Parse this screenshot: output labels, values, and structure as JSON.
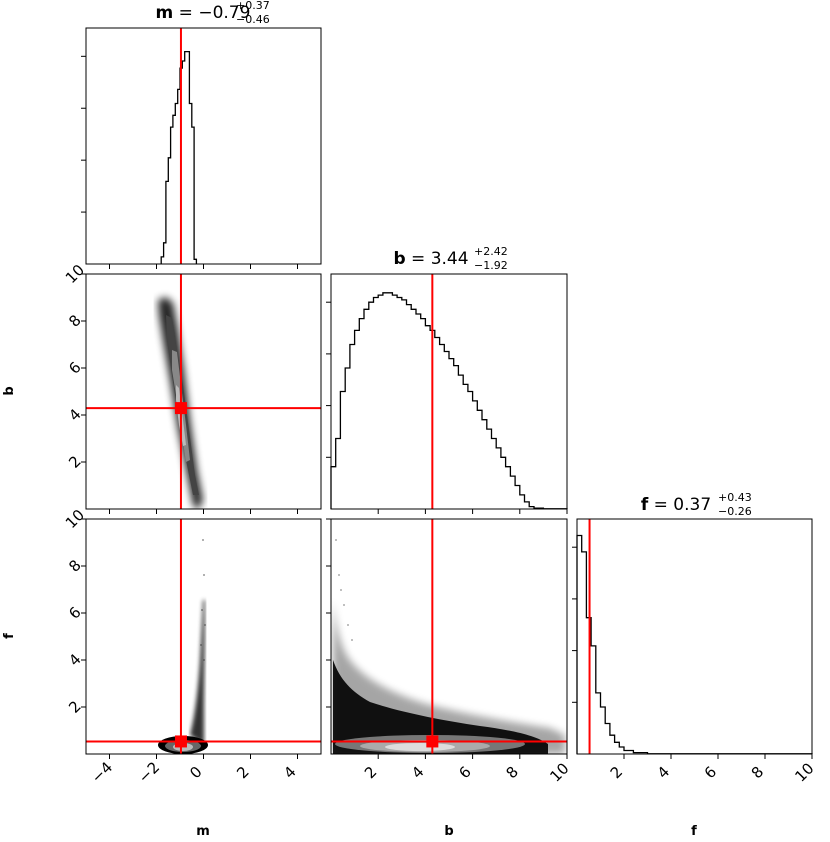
{
  "chart_data": {
    "type": "corner",
    "parameters": [
      "m",
      "b",
      "f"
    ],
    "truths": {
      "m": -0.9594,
      "b": 4.294,
      "f": 0.534
    },
    "titles": {
      "m": {
        "label": "m",
        "value": "−0.79",
        "plus": "+0.37",
        "minus": "−0.46"
      },
      "b": {
        "label": "b",
        "value": "3.44",
        "plus": "+2.42",
        "minus": "−1.92"
      },
      "f": {
        "label": "f",
        "value": "0.37",
        "plus": "+0.43",
        "minus": "−0.26"
      }
    },
    "axis_labels": {
      "m": "m",
      "b": "b",
      "f": "f"
    },
    "ranges": {
      "m": [
        -5,
        5
      ],
      "b": [
        0,
        10
      ],
      "f": [
        0,
        10
      ]
    },
    "ticks": {
      "m": [
        -4,
        -2,
        0,
        2,
        4
      ],
      "b": [
        2,
        4,
        6,
        8,
        10
      ],
      "f": [
        2,
        4,
        6,
        8,
        10
      ]
    },
    "tick_labels": {
      "m": [
        "−4",
        "−2",
        "0",
        "2",
        "4"
      ],
      "b": [
        "2",
        "4",
        "6",
        "8",
        "10"
      ],
      "f": [
        "2",
        "4",
        "6",
        "8",
        "10"
      ]
    },
    "histograms": {
      "m": {
        "bins": [
          [
            -1.8,
            -1.7,
            0.03
          ],
          [
            -1.7,
            -1.6,
            0.09
          ],
          [
            -1.6,
            -1.5,
            0.35
          ],
          [
            -1.5,
            -1.4,
            0.45
          ],
          [
            -1.4,
            -1.3,
            0.58
          ],
          [
            -1.3,
            -1.2,
            0.63
          ],
          [
            -1.2,
            -1.1,
            0.68
          ],
          [
            -1.1,
            -1.0,
            0.74
          ],
          [
            -1.0,
            -0.9,
            0.83
          ],
          [
            -0.9,
            -0.8,
            0.86
          ],
          [
            -0.8,
            -0.7,
            0.9
          ],
          [
            -0.7,
            -0.6,
            0.9
          ],
          [
            -0.6,
            -0.5,
            0.68
          ],
          [
            -0.5,
            -0.4,
            0.58
          ],
          [
            -0.4,
            -0.3,
            0.02
          ]
        ]
      },
      "b": {
        "bins": [
          [
            0,
            0.2,
            0.18
          ],
          [
            0.2,
            0.4,
            0.3
          ],
          [
            0.4,
            0.6,
            0.5
          ],
          [
            0.6,
            0.8,
            0.6
          ],
          [
            0.8,
            1.0,
            0.7
          ],
          [
            1.0,
            1.2,
            0.76
          ],
          [
            1.2,
            1.4,
            0.81
          ],
          [
            1.4,
            1.6,
            0.85
          ],
          [
            1.6,
            1.8,
            0.88
          ],
          [
            1.8,
            2.0,
            0.9
          ],
          [
            2.0,
            2.2,
            0.91
          ],
          [
            2.2,
            2.4,
            0.92
          ],
          [
            2.4,
            2.6,
            0.92
          ],
          [
            2.6,
            2.8,
            0.91
          ],
          [
            2.8,
            3.0,
            0.9
          ],
          [
            3.0,
            3.2,
            0.89
          ],
          [
            3.2,
            3.4,
            0.87
          ],
          [
            3.4,
            3.6,
            0.85
          ],
          [
            3.6,
            3.8,
            0.83
          ],
          [
            3.8,
            4.0,
            0.81
          ],
          [
            4.0,
            4.2,
            0.78
          ],
          [
            4.2,
            4.4,
            0.76
          ],
          [
            4.4,
            4.6,
            0.73
          ],
          [
            4.6,
            4.8,
            0.7
          ],
          [
            4.8,
            5.0,
            0.67
          ],
          [
            5.0,
            5.2,
            0.64
          ],
          [
            5.2,
            5.4,
            0.61
          ],
          [
            5.4,
            5.6,
            0.57
          ],
          [
            5.6,
            5.8,
            0.53
          ],
          [
            5.8,
            6.0,
            0.5
          ],
          [
            6.0,
            6.2,
            0.46
          ],
          [
            6.2,
            6.4,
            0.42
          ],
          [
            6.4,
            6.6,
            0.38
          ],
          [
            6.6,
            6.8,
            0.34
          ],
          [
            6.8,
            7.0,
            0.3
          ],
          [
            7.0,
            7.2,
            0.26
          ],
          [
            7.2,
            7.4,
            0.22
          ],
          [
            7.4,
            7.6,
            0.18
          ],
          [
            7.6,
            7.8,
            0.14
          ],
          [
            7.8,
            8.0,
            0.1
          ],
          [
            8.0,
            8.2,
            0.06
          ],
          [
            8.2,
            8.4,
            0.03
          ],
          [
            8.4,
            8.6,
            0.01
          ],
          [
            8.6,
            9.0,
            0.004
          ],
          [
            9.0,
            10.0,
            0.001
          ]
        ]
      },
      "f": {
        "bins": [
          [
            0,
            0.2,
            0.93
          ],
          [
            0.2,
            0.4,
            0.86
          ],
          [
            0.4,
            0.6,
            0.58
          ],
          [
            0.6,
            0.8,
            0.46
          ],
          [
            0.8,
            1.0,
            0.26
          ],
          [
            1.0,
            1.2,
            0.2
          ],
          [
            1.2,
            1.4,
            0.13
          ],
          [
            1.4,
            1.6,
            0.08
          ],
          [
            1.6,
            1.8,
            0.05
          ],
          [
            1.8,
            2.0,
            0.03
          ],
          [
            2.0,
            2.4,
            0.015
          ],
          [
            2.4,
            3.0,
            0.006
          ],
          [
            3.0,
            10.0,
            0.001
          ]
        ]
      }
    },
    "density_2d": {
      "b_vs_m": {
        "axis": "m→b",
        "ridge": [
          [
            -1.65,
            8.8
          ],
          [
            -0.35,
            0
          ]
        ],
        "width_m": 0.35
      },
      "f_vs_m": {
        "axis": "m→f",
        "core": [
          -0.9,
          0.5
        ],
        "tail": [
          [
            -0.4,
            0.4
          ],
          [
            -0.05,
            6.5
          ]
        ]
      },
      "f_vs_b": {
        "axis": "b→f",
        "core": [
          4.3,
          0.5
        ],
        "spread_b": [
          0,
          9
        ],
        "tail": [
          [
            0.2,
            6.3
          ],
          [
            9,
            0.3
          ]
        ]
      }
    }
  }
}
